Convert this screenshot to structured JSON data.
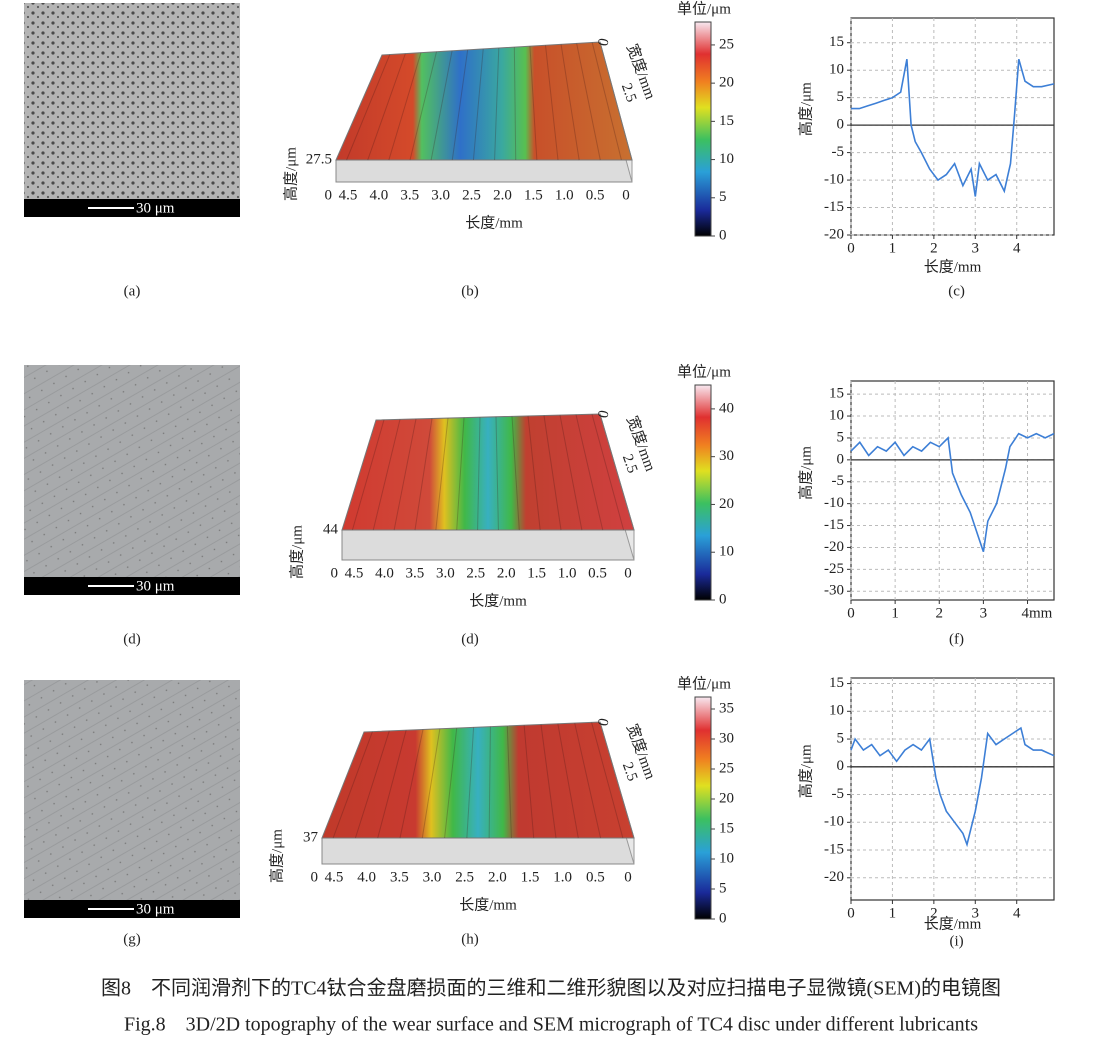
{
  "figure": {
    "rows": [
      {
        "sem": {
          "scale_label": "30 μm",
          "caption": "(a)"
        },
        "surface": {
          "caption": "(b)",
          "z_label": "高度/μm",
          "x_label": "长度/mm",
          "y_label": "宽度/mm",
          "x_ticks": [
            "4.5",
            "4.0",
            "3.5",
            "3.0",
            "2.5",
            "2.0",
            "1.5",
            "1.0",
            "0.5",
            "0"
          ],
          "y_ticks": [
            "0",
            "2.5"
          ],
          "z_ticks": [
            "27.5",
            "0"
          ]
        },
        "colorbar": {
          "title": "单位/μm",
          "lim": [
            0,
            28
          ],
          "ticks": [
            0,
            5,
            10,
            15,
            20,
            25
          ]
        },
        "profile": {
          "type": "line",
          "caption": "(c)",
          "x_label": "长度/mm",
          "y_label": "高度/μm",
          "color": "#3d7fd6",
          "grid": true,
          "zero_line": true,
          "xlim": [
            0,
            4.9
          ],
          "ylim": [
            -20,
            19.5
          ],
          "xticks": [
            0,
            1,
            2,
            3,
            4
          ],
          "yticks": [
            -20,
            -15,
            -10,
            -5,
            0,
            5,
            10,
            15
          ],
          "x": [
            0,
            0.2,
            0.4,
            0.6,
            0.8,
            1.0,
            1.2,
            1.35,
            1.45,
            1.55,
            1.7,
            1.9,
            2.1,
            2.3,
            2.5,
            2.7,
            2.9,
            3.0,
            3.1,
            3.3,
            3.5,
            3.7,
            3.85,
            3.95,
            4.05,
            4.2,
            4.4,
            4.6,
            4.9
          ],
          "values": [
            3,
            3,
            3.5,
            4,
            4.5,
            5,
            6,
            12,
            0,
            -3,
            -5,
            -8,
            -10,
            -9,
            -7,
            -11,
            -8,
            -13,
            -7,
            -10,
            -9,
            -12,
            -7,
            2,
            12,
            8,
            7,
            7,
            7.5
          ]
        }
      },
      {
        "sem": {
          "scale_label": "30 μm",
          "caption": "(d)"
        },
        "surface": {
          "caption": "(d)",
          "z_label": "高度/μm",
          "x_label": "长度/mm",
          "y_label": "宽度/mm",
          "x_ticks": [
            "4.5",
            "4.0",
            "3.5",
            "3.0",
            "2.5",
            "2.0",
            "1.5",
            "1.0",
            "0.5",
            "0"
          ],
          "y_ticks": [
            "0",
            "2.5"
          ],
          "z_ticks": [
            "44",
            "0"
          ]
        },
        "colorbar": {
          "title": "单位/μm",
          "lim": [
            0,
            45
          ],
          "ticks": [
            0,
            10,
            20,
            30,
            40
          ]
        },
        "profile": {
          "type": "line",
          "caption": "(f)",
          "y_label": "高度/μm",
          "color": "#3d7fd6",
          "grid": true,
          "zero_line": true,
          "xlim": [
            0,
            4.6
          ],
          "ylim": [
            -32,
            18
          ],
          "xticks": [
            0,
            1,
            2,
            3,
            {
              "value": 4,
              "label": "4mm"
            }
          ],
          "yticks": [
            -30,
            -25,
            -20,
            -15,
            -10,
            -5,
            0,
            5,
            10,
            15
          ],
          "x": [
            0,
            0.2,
            0.4,
            0.6,
            0.8,
            1.0,
            1.2,
            1.4,
            1.6,
            1.8,
            2.0,
            2.2,
            2.3,
            2.5,
            2.7,
            2.8,
            2.9,
            3.0,
            3.1,
            3.3,
            3.5,
            3.6,
            3.8,
            4.0,
            4.2,
            4.4,
            4.6
          ],
          "values": [
            2,
            4,
            1,
            3,
            2,
            4,
            1,
            3,
            2,
            4,
            3,
            5,
            -3,
            -8,
            -12,
            -15,
            -18,
            -21,
            -14,
            -10,
            -2,
            3,
            6,
            5,
            6,
            5,
            6
          ]
        }
      },
      {
        "sem": {
          "scale_label": "30 μm",
          "caption": "(g)"
        },
        "surface": {
          "caption": "(h)",
          "z_label": "高度/μm",
          "x_label": "长度/mm",
          "y_label": "宽度/mm",
          "x_ticks": [
            "4.5",
            "4.0",
            "3.5",
            "3.0",
            "2.5",
            "2.0",
            "1.5",
            "1.0",
            "0.5",
            "0"
          ],
          "y_ticks": [
            "0",
            "2.5"
          ],
          "z_ticks": [
            "37",
            "0"
          ]
        },
        "colorbar": {
          "title": "单位/μm",
          "lim": [
            0,
            37
          ],
          "ticks": [
            0,
            5,
            10,
            15,
            20,
            25,
            30,
            35
          ]
        },
        "profile": {
          "type": "line",
          "caption": "(i)",
          "x_label": "长度/mm",
          "y_label": "高度/μm",
          "color": "#3d7fd6",
          "grid": true,
          "zero_line": true,
          "xlim": [
            0,
            4.9
          ],
          "ylim": [
            -24,
            16
          ],
          "xticks": [
            0,
            1,
            2,
            3,
            4
          ],
          "yticks": [
            -20,
            -15,
            -10,
            -5,
            0,
            5,
            10,
            15
          ],
          "x": [
            0,
            0.1,
            0.3,
            0.5,
            0.7,
            0.9,
            1.1,
            1.3,
            1.5,
            1.7,
            1.9,
            2.05,
            2.15,
            2.3,
            2.5,
            2.7,
            2.8,
            2.9,
            3.0,
            3.15,
            3.3,
            3.5,
            3.7,
            3.9,
            4.1,
            4.2,
            4.4,
            4.6,
            4.9
          ],
          "values": [
            3,
            5,
            3,
            4,
            2,
            3,
            1,
            3,
            4,
            3,
            5,
            -2,
            -5,
            -8,
            -10,
            -12,
            -14,
            -11,
            -8,
            -2,
            6,
            4,
            5,
            6,
            7,
            4,
            3,
            3,
            2
          ]
        }
      }
    ],
    "caption_cn": "图8　不同润滑剂下的TC4钛合金盘磨损面的三维和二维形貌图以及对应扫描电子显微镜(SEM)的电镜图",
    "caption_en": "Fig.8　3D/2D topography of the wear surface and SEM micrograph of TC4 disc under different lubricants"
  }
}
